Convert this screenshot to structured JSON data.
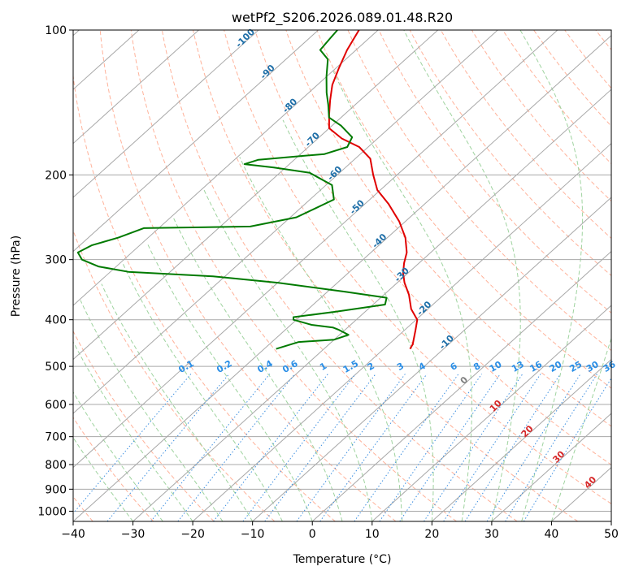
{
  "chart_data": {
    "type": "line",
    "subtype": "skew-t log-p diagram",
    "title": "wetPf2_S206.2026.089.01.48.R20",
    "xlabel": "Temperature (°C)",
    "ylabel": "Pressure (hPa)",
    "xlim": [
      -40,
      50
    ],
    "ylim": [
      1050,
      100
    ],
    "x_ticks": [
      -40,
      -30,
      -20,
      -10,
      0,
      10,
      20,
      30,
      40,
      50
    ],
    "y_ticks": [
      100,
      200,
      300,
      400,
      500,
      600,
      700,
      800,
      900,
      1000
    ],
    "isotherm_labels": [
      "-100",
      "-90",
      "-80",
      "-70",
      "-60",
      "-50",
      "-40",
      "-30",
      "-20",
      "-10"
    ],
    "mixing_ratio_labels": [
      "0.1",
      "0.2",
      "0.4",
      "0.6",
      "1",
      "1.5",
      "2",
      "3",
      "4",
      "6",
      "8",
      "10",
      "13",
      "16",
      "20",
      "25",
      "30",
      "36"
    ],
    "temperature_labels": [
      "0",
      "10",
      "20",
      "30",
      "40"
    ],
    "colors": {
      "temperature": "#e00000",
      "dewpoint": "#007a00",
      "isotherm": "#a8a8a8",
      "dry_adiabat": "#ffb29a",
      "moist_adiabat": "#9fd39f",
      "mixing_ratio": "#3d8fe0",
      "isotherm_label": "#1f6fa8",
      "mixing_label": "#2a8ee6",
      "temp_label_zero": "#808080",
      "temp_label": "#d62728"
    },
    "series": [
      {
        "name": "Temperature",
        "points": [
          [
            -15.6,
            460
          ],
          [
            -16.0,
            450
          ],
          [
            -18.2,
            420
          ],
          [
            -19.8,
            400
          ],
          [
            -22.8,
            380
          ],
          [
            -25.8,
            355
          ],
          [
            -28.8,
            335
          ],
          [
            -30.8,
            320
          ],
          [
            -32.5,
            305
          ],
          [
            -34.0,
            290
          ],
          [
            -37.0,
            270
          ],
          [
            -41.0,
            250
          ],
          [
            -46.0,
            230
          ],
          [
            -50.5,
            215
          ],
          [
            -54.0,
            200
          ],
          [
            -57.5,
            185
          ],
          [
            -61.5,
            175
          ],
          [
            -66.0,
            168
          ],
          [
            -70.0,
            160
          ],
          [
            -72.5,
            150
          ],
          [
            -75.0,
            140
          ],
          [
            -77.5,
            130
          ],
          [
            -79.5,
            120
          ],
          [
            -81.5,
            110
          ],
          [
            -83.2,
            100
          ]
        ]
      },
      {
        "name": "Dewpoint",
        "points": [
          [
            -38.0,
            460
          ],
          [
            -35.5,
            445
          ],
          [
            -30.0,
            440
          ],
          [
            -28.5,
            430
          ],
          [
            -31.0,
            420
          ],
          [
            -32.5,
            415
          ],
          [
            -36.5,
            410
          ],
          [
            -40.5,
            400
          ],
          [
            -41.0,
            395
          ],
          [
            -35.0,
            385
          ],
          [
            -28.0,
            372
          ],
          [
            -29.0,
            360
          ],
          [
            -37.0,
            350
          ],
          [
            -50.0,
            335
          ],
          [
            -62.0,
            325
          ],
          [
            -77.0,
            318
          ],
          [
            -83.0,
            310
          ],
          [
            -87.0,
            300
          ],
          [
            -89.0,
            290
          ],
          [
            -88.0,
            280
          ],
          [
            -85.0,
            270
          ],
          [
            -82.5,
            258
          ],
          [
            -65.0,
            256
          ],
          [
            -59.0,
            245
          ],
          [
            -57.5,
            235
          ],
          [
            -56.0,
            225
          ],
          [
            -59.0,
            210
          ],
          [
            -65.0,
            198
          ],
          [
            -72.0,
            193
          ],
          [
            -77.5,
            190
          ],
          [
            -76.0,
            186
          ],
          [
            -66.0,
            181
          ],
          [
            -63.5,
            175
          ],
          [
            -64.5,
            167
          ],
          [
            -68.5,
            158
          ],
          [
            -72.0,
            152
          ],
          [
            -74.5,
            143
          ],
          [
            -77.0,
            135
          ],
          [
            -80.0,
            125
          ],
          [
            -83.0,
            115
          ],
          [
            -86.0,
            110
          ],
          [
            -86.5,
            104
          ],
          [
            -86.8,
            100
          ]
        ]
      }
    ]
  }
}
